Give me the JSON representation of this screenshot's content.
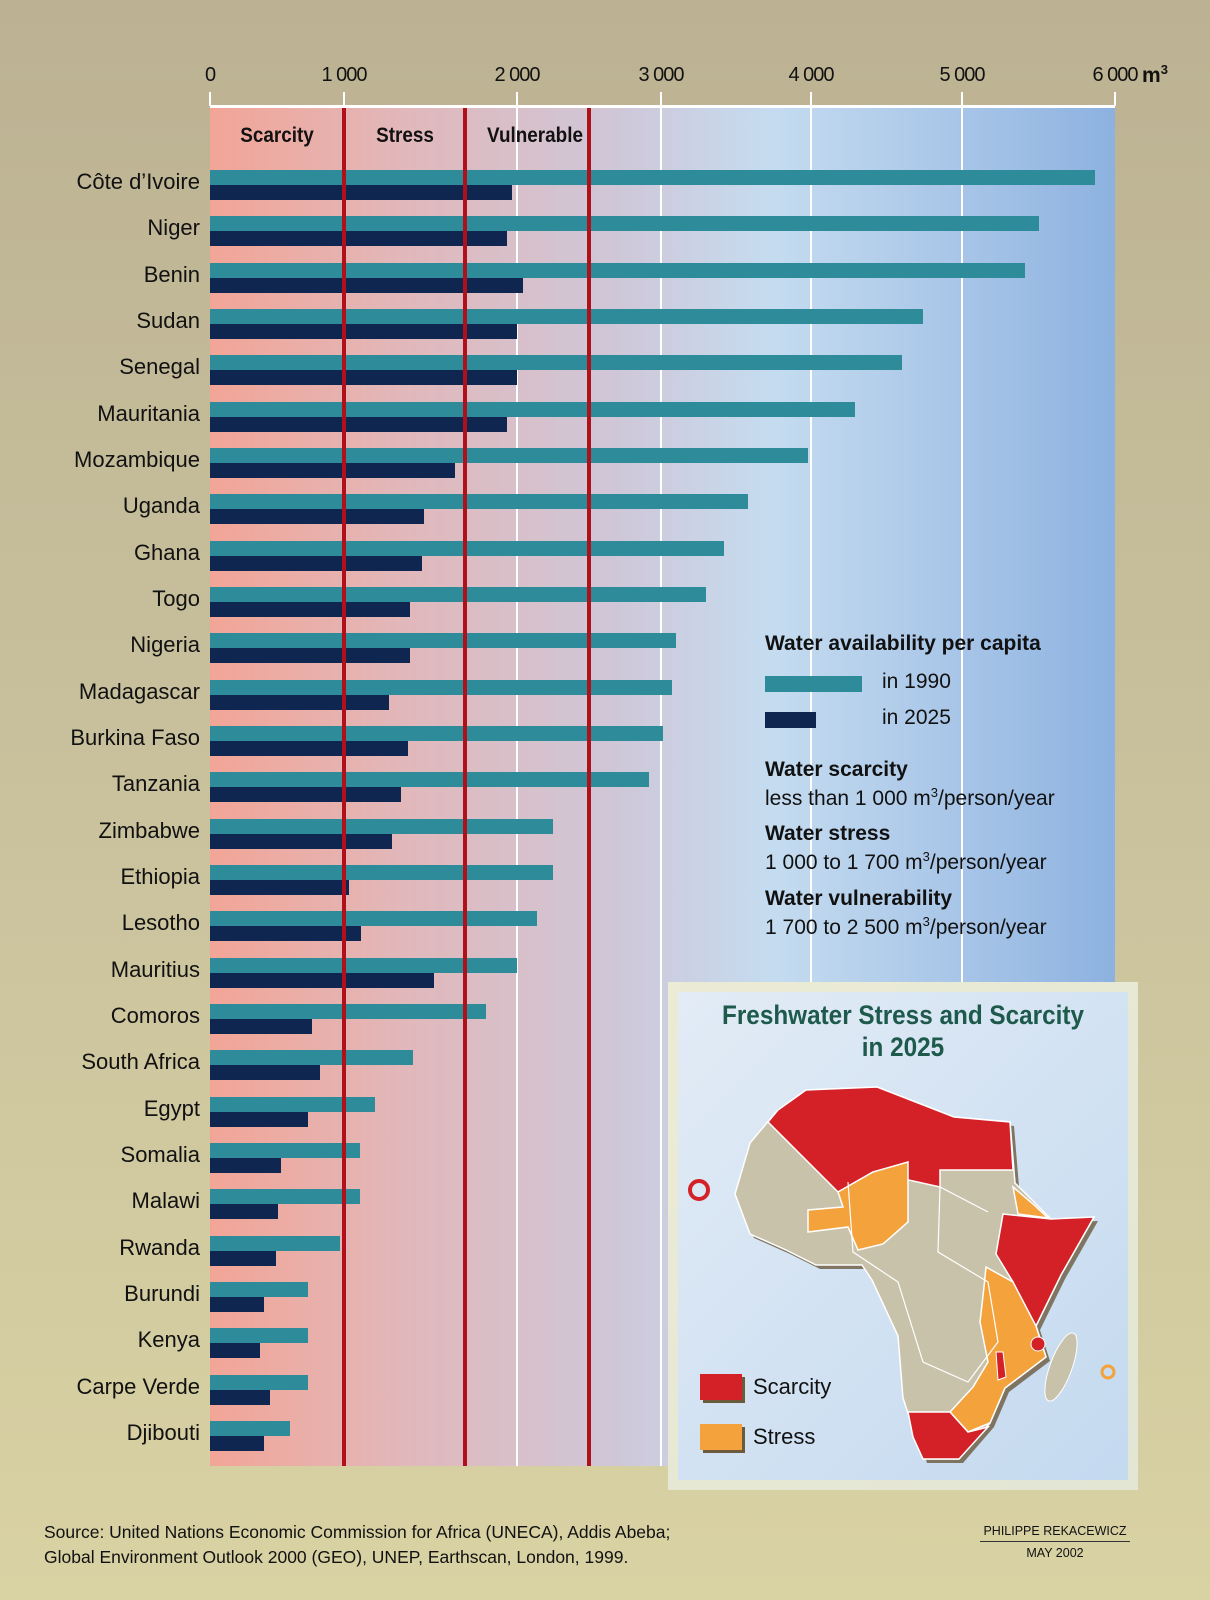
{
  "chart_data": {
    "type": "bar",
    "orientation": "horizontal",
    "unit_label": "m",
    "unit_superscript": "3",
    "xlim": [
      0,
      6000
    ],
    "x_ticks": [
      "0",
      "1 000",
      "2 000",
      "3 000",
      "4 000",
      "5 000",
      "6 000"
    ],
    "x_tick_values": [
      0,
      1000,
      2000,
      3000,
      4000,
      5000,
      6000
    ],
    "grid": true,
    "zones": [
      {
        "label": "Scarcity",
        "from": 0,
        "to": 1000
      },
      {
        "label": "Stress",
        "from": 1000,
        "to": 1700
      },
      {
        "label": "Vulnerable",
        "from": 1700,
        "to": 2500
      }
    ],
    "zone_line_color": "#b0101a",
    "categories": [
      "Côte d’Ivoire",
      "Niger",
      "Benin",
      "Sudan",
      "Senegal",
      "Mauritania",
      "Mozambique",
      "Uganda",
      "Ghana",
      "Togo",
      "Nigeria",
      "Madagascar",
      "Burkina Faso",
      "Tanzania",
      "Zimbabwe",
      "Ethiopia",
      "Lesotho",
      "Mauritius",
      "Comoros",
      "South Africa",
      "Egypt",
      "Somalia",
      "Malawi",
      "Rwanda",
      "Burundi",
      "Kenya",
      "Carpe Verde",
      "Djibouti"
    ],
    "series": [
      {
        "name": "in 1990",
        "color": "#2e8c9a",
        "values": [
          5870,
          5500,
          5410,
          4740,
          4600,
          4290,
          3980,
          3580,
          3420,
          3300,
          3100,
          3070,
          3010,
          2920,
          2250,
          2250,
          2140,
          2000,
          1820,
          1400,
          1180,
          1090,
          1090,
          970,
          730,
          730,
          730,
          600
        ]
      },
      {
        "name": "in 2025",
        "color": "#0f2650",
        "values": [
          1970,
          1940,
          2040,
          2000,
          2000,
          1940,
          1640,
          1460,
          1450,
          1380,
          1380,
          1260,
          1370,
          1330,
          1280,
          1030,
          1100,
          1520,
          760,
          820,
          730,
          530,
          510,
          490,
          400,
          370,
          450,
          400
        ]
      }
    ],
    "legend_placement": "right"
  },
  "legend": {
    "title": "Water availability per capita",
    "scarcity_title": "Water scarcity",
    "scarcity_pre": "less than 1 000 m",
    "scarcity_post": "/person/year",
    "stress_title": "Water stress",
    "stress_pre": "1 000 to 1 700 m",
    "stress_post": "/person/year",
    "vuln_title": "Water vulnerability",
    "vuln_pre": "1 700 to 2 500 m",
    "vuln_post": "/person/year",
    "sup": "3"
  },
  "inset_map": {
    "title_line1": "Freshwater Stress and Scarcity",
    "title_line2": "in 2025",
    "legend": [
      {
        "label": "Scarcity",
        "color": "#d42027"
      },
      {
        "label": "Stress",
        "color": "#f4a23c"
      }
    ],
    "land_color": "#c8c2aa"
  },
  "source": {
    "line1": "Source: United Nations Economic Commission for Africa (UNECA), Addis Abeba;",
    "line2": "Global Environment Outlook 2000 (GEO), UNEP, Earthscan, London, 1999."
  },
  "credit": {
    "author": "PHILIPPE REKACEWICZ",
    "date": "MAY 2002"
  }
}
